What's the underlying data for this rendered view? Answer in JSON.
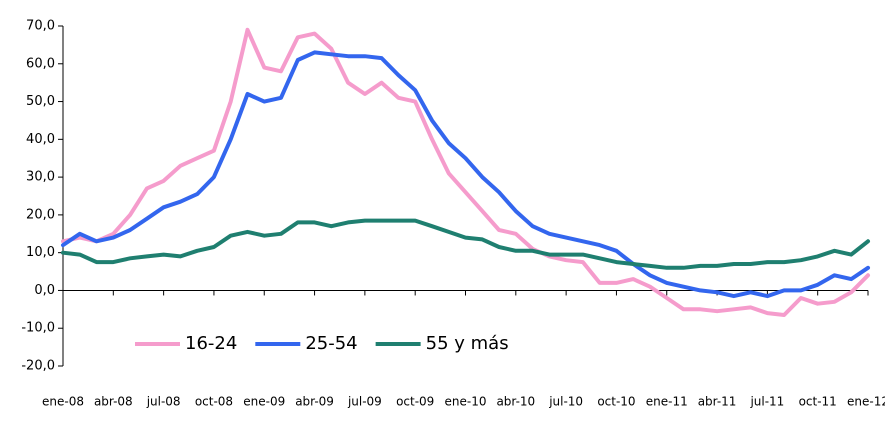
{
  "chart_data": {
    "type": "line",
    "categories": [
      "ene-08",
      null,
      null,
      "abr-08",
      null,
      null,
      "jul-08",
      null,
      null,
      "oct-08",
      null,
      null,
      "ene-09",
      null,
      null,
      "abr-09",
      null,
      null,
      "jul-09",
      null,
      null,
      "oct-09",
      null,
      null,
      "ene-10",
      null,
      null,
      "abr-10",
      null,
      null,
      "jul-10",
      null,
      null,
      "oct-10",
      null,
      null,
      "ene-11",
      null,
      null,
      "abr-11",
      null,
      null,
      "jul-11",
      null,
      null,
      "oct-11",
      null,
      null,
      "ene-12"
    ],
    "series": [
      {
        "name": "16-24",
        "color": "#f59ccc",
        "values": [
          13,
          14,
          13,
          15,
          20,
          27,
          29,
          33,
          35,
          37,
          50,
          69,
          59,
          58,
          67,
          68,
          64,
          55,
          52,
          55,
          51,
          50,
          40,
          31,
          26,
          21,
          16,
          15,
          11,
          9,
          8,
          7.5,
          2,
          2,
          3,
          1,
          -2,
          -5,
          -5,
          -5.5,
          -5,
          -4.5,
          -6,
          -6.5,
          -2,
          -3.5,
          -3,
          -0.5,
          4
        ]
      },
      {
        "name": "25-54",
        "color": "#3366ee",
        "values": [
          12,
          15,
          13,
          14,
          16,
          19,
          22,
          23.5,
          25.5,
          30,
          40,
          52,
          50,
          51,
          61,
          63,
          62.5,
          62,
          62,
          61.5,
          57,
          53,
          45,
          39,
          35,
          30,
          26,
          21,
          17,
          15,
          14,
          13,
          12,
          10.5,
          7,
          4,
          2,
          1,
          0,
          -0.5,
          -1.5,
          -0.5,
          -1.5,
          0,
          0,
          1.5,
          4,
          3,
          6
        ]
      },
      {
        "name": "55 y más",
        "color": "#1f7f70",
        "values": [
          10,
          9.5,
          7.5,
          7.5,
          8.5,
          9,
          9.5,
          9,
          10.5,
          11.5,
          14.5,
          15.5,
          14.5,
          15,
          18,
          18,
          17,
          18,
          18.5,
          18.5,
          18.5,
          18.5,
          17,
          15.5,
          14,
          13.5,
          11.5,
          10.5,
          10.5,
          9.5,
          9.5,
          9.5,
          8.5,
          7.5,
          7,
          6.5,
          6,
          6,
          6.5,
          6.5,
          7,
          7,
          7.5,
          7.5,
          8,
          9,
          10.5,
          9.5,
          13
        ]
      }
    ],
    "ylim": [
      -20,
      70
    ],
    "yticks": [
      {
        "value": -20,
        "label": "-20,0"
      },
      {
        "value": -10,
        "label": "-10,0"
      },
      {
        "value": 0,
        "label": "0,0"
      },
      {
        "value": 10,
        "label": "10,0"
      },
      {
        "value": 20,
        "label": "20,0"
      },
      {
        "value": 30,
        "label": "30,0"
      },
      {
        "value": 40,
        "label": "40,0"
      },
      {
        "value": 50,
        "label": "50,0"
      },
      {
        "value": 60,
        "label": "60,0"
      },
      {
        "value": 70,
        "label": "70,0"
      }
    ],
    "grid": false,
    "legend": "bottom-left"
  }
}
